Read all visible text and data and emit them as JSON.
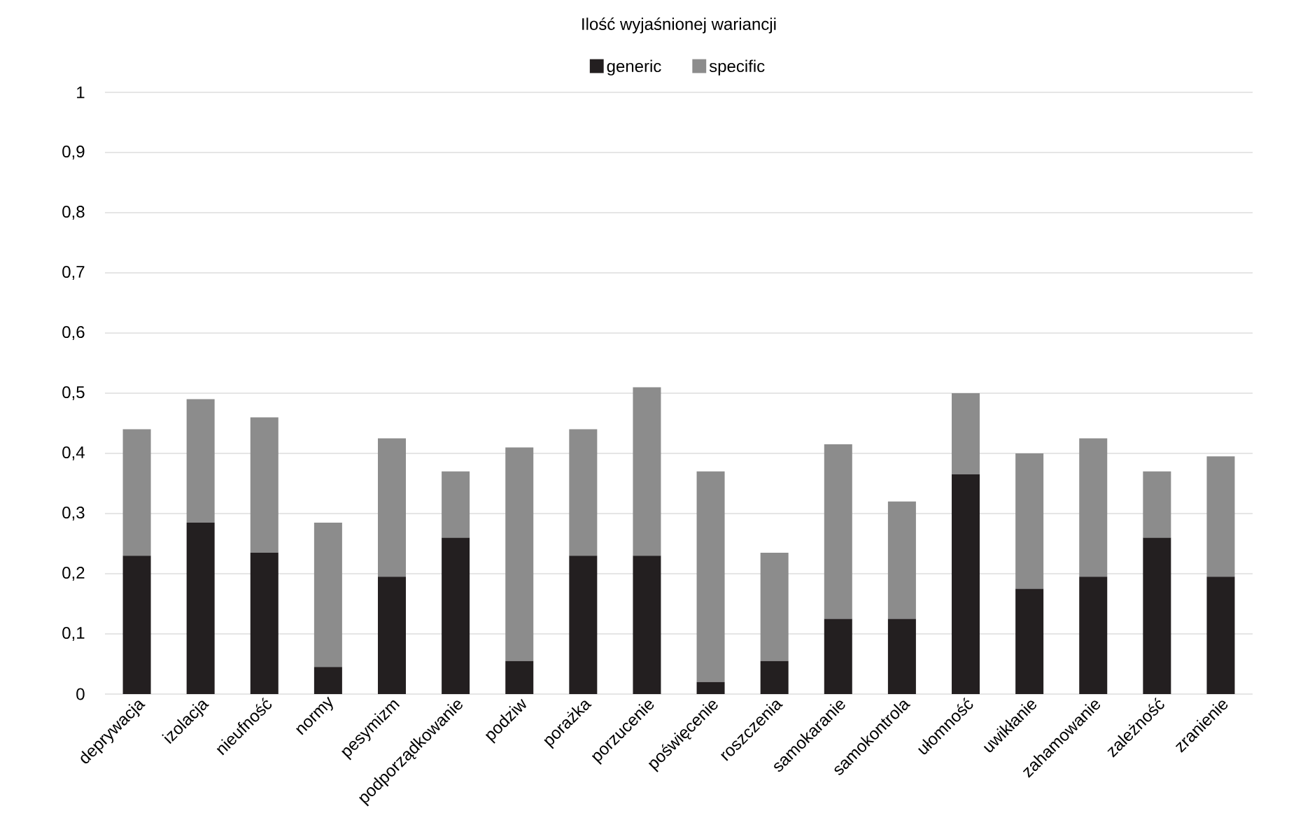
{
  "chart_data": {
    "type": "bar",
    "title": "Ilość wyjaśnionej wariancji",
    "stacked": true,
    "categories": [
      "deprywacja",
      "izolacja",
      "nieufność",
      "normy",
      "pesymizm",
      "podporządkowanie",
      "podziw",
      "porażka",
      "porzucenie",
      "poświęcenie",
      "roszczenia",
      "samokaranie",
      "samokontrola",
      "ułomność",
      "uwikłanie",
      "zahamowanie",
      "zależność",
      "zranienie"
    ],
    "series": [
      {
        "name": "generic",
        "color": "#231f20",
        "values": [
          0.23,
          0.285,
          0.235,
          0.045,
          0.195,
          0.26,
          0.055,
          0.23,
          0.23,
          0.02,
          0.055,
          0.125,
          0.125,
          0.365,
          0.175,
          0.195,
          0.26,
          0.195
        ]
      },
      {
        "name": "specific",
        "color": "#8c8c8c",
        "values": [
          0.21,
          0.205,
          0.225,
          0.24,
          0.23,
          0.11,
          0.355,
          0.21,
          0.28,
          0.35,
          0.18,
          0.29,
          0.195,
          0.135,
          0.225,
          0.23,
          0.11,
          0.2
        ]
      }
    ],
    "ylim": [
      0,
      1
    ],
    "yticks": [
      0,
      {
        "value": 0.1,
        "label": "0,1"
      },
      {
        "value": 0.2,
        "label": "0,2"
      },
      {
        "value": 0.3,
        "label": "0,3"
      },
      {
        "value": 0.4,
        "label": "0,4"
      },
      {
        "value": 0.5,
        "label": "0,5"
      },
      {
        "value": 0.6,
        "label": "0,6"
      },
      {
        "value": 0.7,
        "label": "0,7"
      },
      {
        "value": 0.8,
        "label": "0,8"
      },
      {
        "value": 0.9,
        "label": "0,9"
      },
      1
    ],
    "grid": "y",
    "legend": "top"
  }
}
